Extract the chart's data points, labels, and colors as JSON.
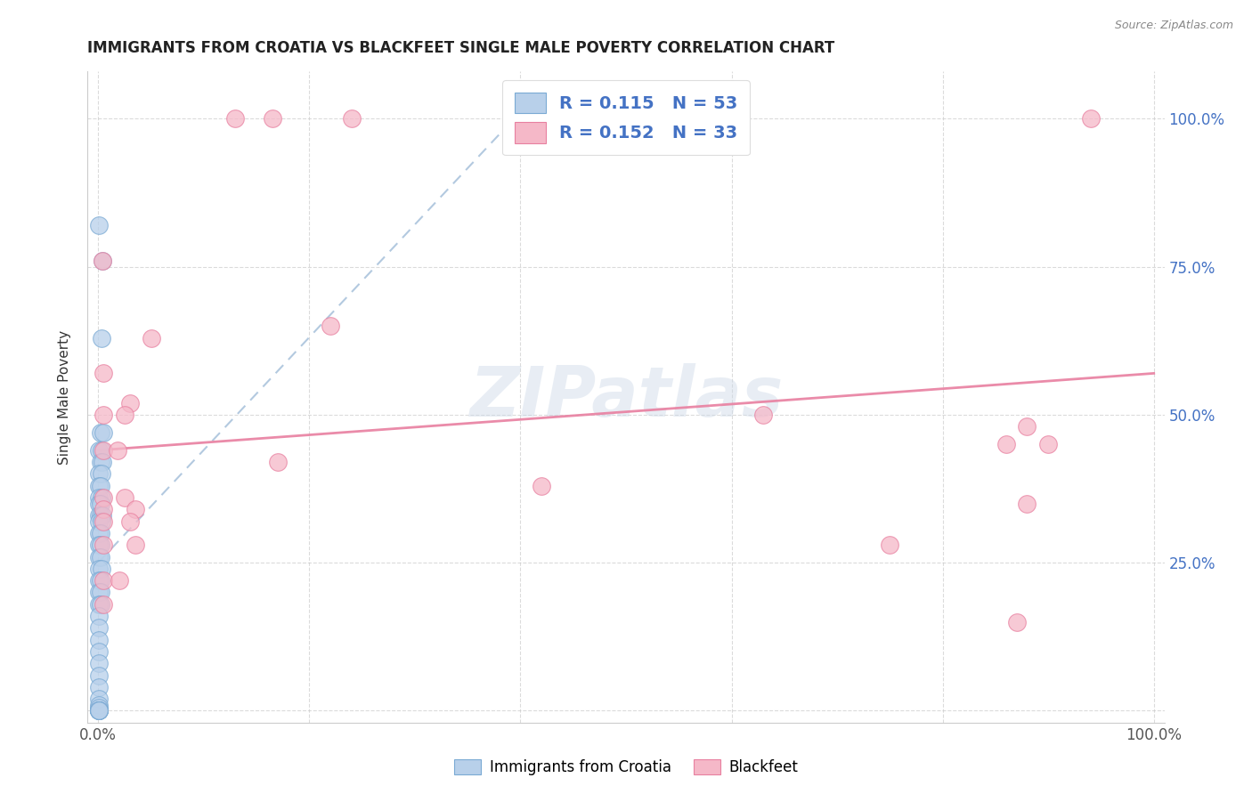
{
  "title": "IMMIGRANTS FROM CROATIA VS BLACKFEET SINGLE MALE POVERTY CORRELATION CHART",
  "source": "Source: ZipAtlas.com",
  "ylabel": "Single Male Poverty",
  "legend_label1": "Immigrants from Croatia",
  "legend_label2": "Blackfeet",
  "R1": 0.115,
  "N1": 53,
  "R2": 0.152,
  "N2": 33,
  "watermark": "ZIPatlas",
  "blue_color": "#b8d0ea",
  "pink_color": "#f5b8c8",
  "blue_edge_color": "#7aaad4",
  "pink_edge_color": "#e880a0",
  "blue_line_color": "#a0bcd8",
  "pink_line_color": "#e87fa0",
  "blue_scatter": [
    [
      0.001,
      0.82
    ],
    [
      0.004,
      0.76
    ],
    [
      0.003,
      0.63
    ],
    [
      0.002,
      0.47
    ],
    [
      0.005,
      0.47
    ],
    [
      0.001,
      0.44
    ],
    [
      0.003,
      0.44
    ],
    [
      0.002,
      0.42
    ],
    [
      0.004,
      0.42
    ],
    [
      0.001,
      0.4
    ],
    [
      0.003,
      0.4
    ],
    [
      0.001,
      0.38
    ],
    [
      0.002,
      0.38
    ],
    [
      0.001,
      0.36
    ],
    [
      0.003,
      0.36
    ],
    [
      0.001,
      0.35
    ],
    [
      0.002,
      0.35
    ],
    [
      0.001,
      0.33
    ],
    [
      0.002,
      0.33
    ],
    [
      0.004,
      0.33
    ],
    [
      0.001,
      0.32
    ],
    [
      0.003,
      0.32
    ],
    [
      0.001,
      0.3
    ],
    [
      0.002,
      0.3
    ],
    [
      0.001,
      0.28
    ],
    [
      0.002,
      0.28
    ],
    [
      0.001,
      0.26
    ],
    [
      0.002,
      0.26
    ],
    [
      0.001,
      0.24
    ],
    [
      0.003,
      0.24
    ],
    [
      0.001,
      0.22
    ],
    [
      0.002,
      0.22
    ],
    [
      0.001,
      0.2
    ],
    [
      0.002,
      0.2
    ],
    [
      0.001,
      0.18
    ],
    [
      0.002,
      0.18
    ],
    [
      0.001,
      0.16
    ],
    [
      0.001,
      0.14
    ],
    [
      0.001,
      0.12
    ],
    [
      0.001,
      0.1
    ],
    [
      0.001,
      0.08
    ],
    [
      0.001,
      0.06
    ],
    [
      0.001,
      0.04
    ],
    [
      0.001,
      0.02
    ],
    [
      0.001,
      0.01
    ],
    [
      0.001,
      0.005
    ],
    [
      0.001,
      0.0
    ],
    [
      0.001,
      0.0
    ],
    [
      0.001,
      0.0
    ],
    [
      0.001,
      0.0
    ],
    [
      0.001,
      0.0
    ],
    [
      0.001,
      0.0
    ],
    [
      0.001,
      0.0
    ]
  ],
  "pink_scatter": [
    [
      0.13,
      1.0
    ],
    [
      0.165,
      1.0
    ],
    [
      0.24,
      1.0
    ],
    [
      0.94,
      1.0
    ],
    [
      0.004,
      0.76
    ],
    [
      0.05,
      0.63
    ],
    [
      0.005,
      0.57
    ],
    [
      0.03,
      0.52
    ],
    [
      0.22,
      0.65
    ],
    [
      0.005,
      0.5
    ],
    [
      0.025,
      0.5
    ],
    [
      0.42,
      0.38
    ],
    [
      0.63,
      0.5
    ],
    [
      0.88,
      0.48
    ],
    [
      0.9,
      0.45
    ],
    [
      0.005,
      0.44
    ],
    [
      0.018,
      0.44
    ],
    [
      0.17,
      0.42
    ],
    [
      0.005,
      0.36
    ],
    [
      0.025,
      0.36
    ],
    [
      0.005,
      0.34
    ],
    [
      0.035,
      0.34
    ],
    [
      0.005,
      0.32
    ],
    [
      0.03,
      0.32
    ],
    [
      0.005,
      0.28
    ],
    [
      0.035,
      0.28
    ],
    [
      0.75,
      0.28
    ],
    [
      0.005,
      0.22
    ],
    [
      0.02,
      0.22
    ],
    [
      0.88,
      0.35
    ],
    [
      0.86,
      0.45
    ],
    [
      0.87,
      0.15
    ],
    [
      0.005,
      0.18
    ]
  ],
  "blue_trend_x0": 0.0,
  "blue_trend_y0": 0.25,
  "blue_trend_x1": 0.42,
  "blue_trend_y1": 1.05,
  "pink_trend_x0": 0.0,
  "pink_trend_y0": 0.44,
  "pink_trend_x1": 1.0,
  "pink_trend_y1": 0.57,
  "xlim_min": -0.01,
  "xlim_max": 1.01,
  "ylim_min": -0.02,
  "ylim_max": 1.08
}
